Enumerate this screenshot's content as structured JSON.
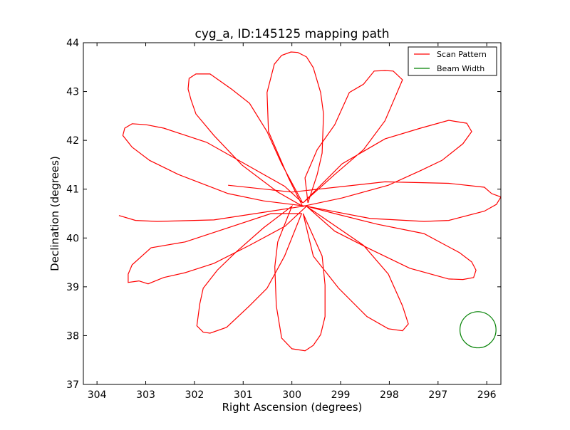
{
  "chart_data": {
    "type": "line",
    "title": "cyg_a, ID:145125 mapping path",
    "xlabel": "Right Ascension (degrees)",
    "ylabel": "Declination (degrees)",
    "xlim": [
      304.28,
      295.71
    ],
    "ylim": [
      37,
      44
    ],
    "x_inverted": true,
    "grid": false,
    "xticks": [
      304,
      303,
      302,
      301,
      300,
      299,
      298,
      297,
      296
    ],
    "yticks": [
      37,
      38,
      39,
      40,
      41,
      42,
      43,
      44
    ],
    "legend": {
      "placement": "top-right",
      "entries": [
        {
          "label": "Scan Pattern",
          "color": "#ff0000"
        },
        {
          "label": "Beam Width",
          "color": "#008000"
        }
      ]
    },
    "series": [
      {
        "name": "Scan Pattern",
        "color": "#ff0000",
        "ra": [
          301.31,
          300.0,
          298.09,
          296.78,
          296.05,
          295.9,
          295.71,
          295.8,
          296.05,
          296.78,
          297.29,
          298.39,
          299.7,
          299.12,
          298.24,
          297.29,
          296.56,
          296.31,
          296.22,
          296.27,
          296.49,
          296.78,
          297.58,
          298.39,
          299.12,
          299.7,
          299.48,
          298.53,
          298.02,
          297.73,
          297.61,
          297.73,
          298.02,
          298.46,
          299.04,
          299.56,
          299.77,
          299.38,
          299.32,
          299.32,
          299.41,
          299.56,
          299.73,
          300.0,
          300.21,
          300.32,
          300.35,
          300.29,
          300.0,
          300.58,
          301.16,
          301.53,
          301.82,
          301.89,
          301.95,
          301.82,
          301.68,
          301.34,
          300.87,
          300.51,
          300.15,
          299.8,
          300.43,
          301.31,
          302.19,
          302.89,
          303.28,
          303.36,
          303.36,
          303.14,
          302.95,
          302.63,
          302.19,
          301.6,
          300.87,
          300.14,
          299.7,
          300.58,
          301.31,
          302.33,
          302.92,
          303.28,
          303.47,
          303.43,
          303.28,
          302.99,
          302.63,
          301.75,
          301.02,
          300.15,
          299.78,
          300.21,
          300.51,
          300.87,
          301.24,
          301.68,
          301.97,
          302.11,
          302.13,
          302.07,
          301.97,
          301.6,
          301.02,
          300.29,
          299.78,
          300.07,
          300.32,
          300.48,
          300.51,
          300.36,
          300.21,
          300.02,
          299.88,
          299.7,
          299.56,
          299.41,
          299.35,
          299.38,
          299.48,
          299.67,
          299.73,
          299.48,
          299.12,
          298.82,
          298.53,
          298.31,
          298.09,
          297.92,
          297.73,
          297.87,
          298.09,
          298.53,
          299.12,
          299.77,
          298.97,
          298.09,
          297.36,
          296.78,
          296.41,
          296.31,
          296.49,
          296.92,
          297.36,
          298.02,
          298.97,
          299.77,
          301.6,
          302.77,
          303.21,
          303.55
        ],
        "dec": [
          41.08,
          40.94,
          41.15,
          41.12,
          41.04,
          40.91,
          40.84,
          40.69,
          40.55,
          40.36,
          40.34,
          40.4,
          40.65,
          40.5,
          40.28,
          40.09,
          39.7,
          39.51,
          39.34,
          39.19,
          39.15,
          39.16,
          39.38,
          39.77,
          40.14,
          40.65,
          40.5,
          39.85,
          39.26,
          38.61,
          38.24,
          38.1,
          38.14,
          38.39,
          38.97,
          39.63,
          40.5,
          39.63,
          39.04,
          38.39,
          38.02,
          37.8,
          37.69,
          37.73,
          37.95,
          38.61,
          39.41,
          39.92,
          40.65,
          40.21,
          39.7,
          39.34,
          38.97,
          38.65,
          38.2,
          38.07,
          38.05,
          38.17,
          38.61,
          38.97,
          39.63,
          40.5,
          40.5,
          40.21,
          39.92,
          39.8,
          39.45,
          39.26,
          39.09,
          39.12,
          39.06,
          39.19,
          39.29,
          39.48,
          39.85,
          40.24,
          40.65,
          40.76,
          40.91,
          41.3,
          41.59,
          41.86,
          42.1,
          42.25,
          42.34,
          42.32,
          42.25,
          41.96,
          41.55,
          41.06,
          40.72,
          41.52,
          42.18,
          42.76,
          43.05,
          43.36,
          43.36,
          43.27,
          43.05,
          42.83,
          42.54,
          42.1,
          41.49,
          40.94,
          40.65,
          41.23,
          41.81,
          42.18,
          42.98,
          43.56,
          43.74,
          43.81,
          43.8,
          43.71,
          43.49,
          42.98,
          42.54,
          41.74,
          41.3,
          40.72,
          41.23,
          41.81,
          42.32,
          42.98,
          43.15,
          43.42,
          43.43,
          43.42,
          43.24,
          42.91,
          42.4,
          41.81,
          41.3,
          40.72,
          41.52,
          42.03,
          42.25,
          42.41,
          42.35,
          42.18,
          41.93,
          41.59,
          41.38,
          41.08,
          40.82,
          40.65,
          40.37,
          40.34,
          40.36,
          40.46
        ]
      },
      {
        "name": "Beam Width",
        "color": "#008000",
        "shape": "circle",
        "center_ra": 296.18,
        "center_dec": 38.12,
        "radius_deg": 0.37
      }
    ]
  }
}
